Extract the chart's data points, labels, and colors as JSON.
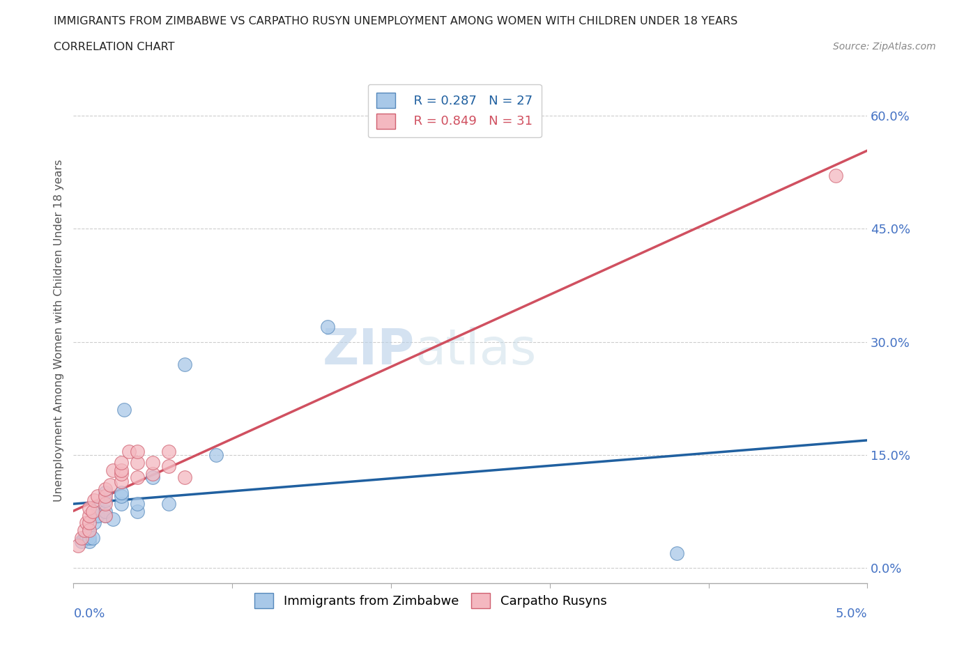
{
  "title": "IMMIGRANTS FROM ZIMBABWE VS CARPATHO RUSYN UNEMPLOYMENT AMONG WOMEN WITH CHILDREN UNDER 18 YEARS",
  "subtitle": "CORRELATION CHART",
  "source": "Source: ZipAtlas.com",
  "xlabel_bottom_left": "0.0%",
  "xlabel_bottom_right": "5.0%",
  "ylabel": "Unemployment Among Women with Children Under 18 years",
  "ytick_labels": [
    "0.0%",
    "15.0%",
    "30.0%",
    "45.0%",
    "60.0%"
  ],
  "ytick_values": [
    0.0,
    0.15,
    0.3,
    0.45,
    0.6
  ],
  "xlim": [
    0.0,
    0.05
  ],
  "ylim": [
    -0.02,
    0.65
  ],
  "legend_r_zimbabwe": "R = 0.287",
  "legend_n_zimbabwe": "N = 27",
  "legend_r_rusyn": "R = 0.849",
  "legend_n_rusyn": "N = 31",
  "zimbabwe_fill": "#a8c8e8",
  "rusyn_fill": "#f4b8c0",
  "zimbabwe_edge": "#5588bb",
  "rusyn_edge": "#d06070",
  "zimbabwe_line_color": "#2060a0",
  "rusyn_line_color": "#d05060",
  "watermark_color": "#c8dcf0",
  "grid_color": "#cccccc",
  "tick_color": "#4472c4",
  "title_color": "#222222",
  "ylabel_color": "#555555",
  "source_color": "#888888",
  "zimbabwe_x": [
    0.0005,
    0.0007,
    0.0008,
    0.001,
    0.001,
    0.001,
    0.0012,
    0.0013,
    0.0015,
    0.0015,
    0.002,
    0.002,
    0.002,
    0.002,
    0.0025,
    0.003,
    0.003,
    0.003,
    0.0032,
    0.004,
    0.004,
    0.005,
    0.006,
    0.007,
    0.009,
    0.016,
    0.038
  ],
  "zimbabwe_y": [
    0.035,
    0.04,
    0.04,
    0.035,
    0.04,
    0.05,
    0.04,
    0.06,
    0.07,
    0.08,
    0.07,
    0.075,
    0.09,
    0.1,
    0.065,
    0.085,
    0.095,
    0.1,
    0.21,
    0.075,
    0.085,
    0.12,
    0.085,
    0.27,
    0.15,
    0.32,
    0.02
  ],
  "rusyn_x": [
    0.0003,
    0.0005,
    0.0007,
    0.0008,
    0.001,
    0.001,
    0.001,
    0.001,
    0.0012,
    0.0013,
    0.0015,
    0.002,
    0.002,
    0.002,
    0.002,
    0.0023,
    0.0025,
    0.003,
    0.003,
    0.003,
    0.003,
    0.0035,
    0.004,
    0.004,
    0.004,
    0.005,
    0.005,
    0.006,
    0.006,
    0.007,
    0.048
  ],
  "rusyn_y": [
    0.03,
    0.04,
    0.05,
    0.06,
    0.05,
    0.06,
    0.07,
    0.08,
    0.075,
    0.09,
    0.095,
    0.07,
    0.085,
    0.095,
    0.105,
    0.11,
    0.13,
    0.115,
    0.125,
    0.13,
    0.14,
    0.155,
    0.12,
    0.14,
    0.155,
    0.125,
    0.14,
    0.135,
    0.155,
    0.12,
    0.52
  ]
}
